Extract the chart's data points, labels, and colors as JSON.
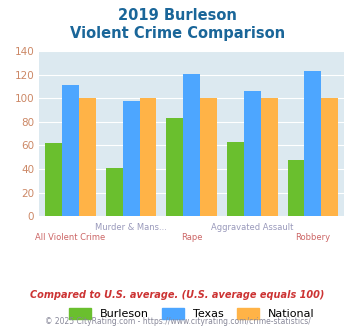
{
  "title_line1": "2019 Burleson",
  "title_line2": "Violent Crime Comparison",
  "categories": [
    "All Violent Crime",
    "Murder & Mans...",
    "Rape",
    "Aggravated Assault",
    "Robbery"
  ],
  "top_labels": [
    "",
    "Murder & Mans...",
    "",
    "Aggravated Assault",
    ""
  ],
  "bot_labels": [
    "All Violent Crime",
    "",
    "Rape",
    "",
    "Robbery"
  ],
  "burleson": [
    62,
    41,
    83,
    63,
    48
  ],
  "texas": [
    111,
    98,
    121,
    106,
    123
  ],
  "national": [
    100,
    100,
    100,
    100,
    100
  ],
  "color_burleson": "#6abf2e",
  "color_texas": "#4da6ff",
  "color_national": "#ffb347",
  "ylim": [
    0,
    140
  ],
  "yticks": [
    0,
    20,
    40,
    60,
    80,
    100,
    120,
    140
  ],
  "bg_color": "#dce9f0",
  "title_color": "#1a6699",
  "top_label_color": "#9999bb",
  "bot_label_color": "#cc6666",
  "footnote1": "Compared to U.S. average. (U.S. average equals 100)",
  "footnote2": "© 2025 CityRating.com - https://www.cityrating.com/crime-statistics/",
  "footnote1_color": "#cc3333",
  "footnote2_color": "#888899",
  "legend_labels": [
    "Burleson",
    "Texas",
    "National"
  ],
  "ytick_color": "#cc8866",
  "ytick_fontsize": 7.5
}
